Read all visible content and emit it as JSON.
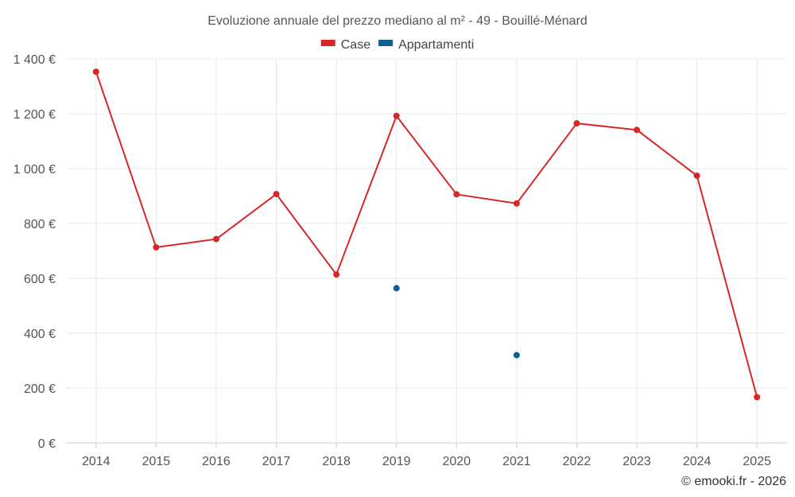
{
  "chart_data": {
    "type": "line",
    "title": "Evoluzione annuale del prezzo mediano al m² - 49 - Bouillé-Ménard",
    "xlabel": "",
    "ylabel": "",
    "categories": [
      "2014",
      "2015",
      "2016",
      "2017",
      "2018",
      "2019",
      "2020",
      "2021",
      "2022",
      "2023",
      "2024",
      "2025"
    ],
    "ylim": [
      0,
      1400
    ],
    "yticks": [
      0,
      200,
      400,
      600,
      800,
      1000,
      1200,
      1400
    ],
    "ytick_labels": [
      "0 €",
      "200 €",
      "400 €",
      "600 €",
      "800 €",
      "1 000 €",
      "1 200 €",
      "1 400 €"
    ],
    "grid": true,
    "legend_position": "top-center",
    "series": [
      {
        "name": "Case",
        "color": "#d62728",
        "mode": "line+markers",
        "values": [
          1353,
          713,
          743,
          907,
          614,
          1192,
          906,
          873,
          1165,
          1141,
          974,
          167
        ]
      },
      {
        "name": "Appartamenti",
        "color": "#0c5f94",
        "mode": "markers",
        "values": [
          null,
          null,
          null,
          null,
          null,
          564,
          null,
          320,
          null,
          null,
          null,
          null
        ]
      }
    ]
  },
  "credit": "© emooki.fr - 2026"
}
